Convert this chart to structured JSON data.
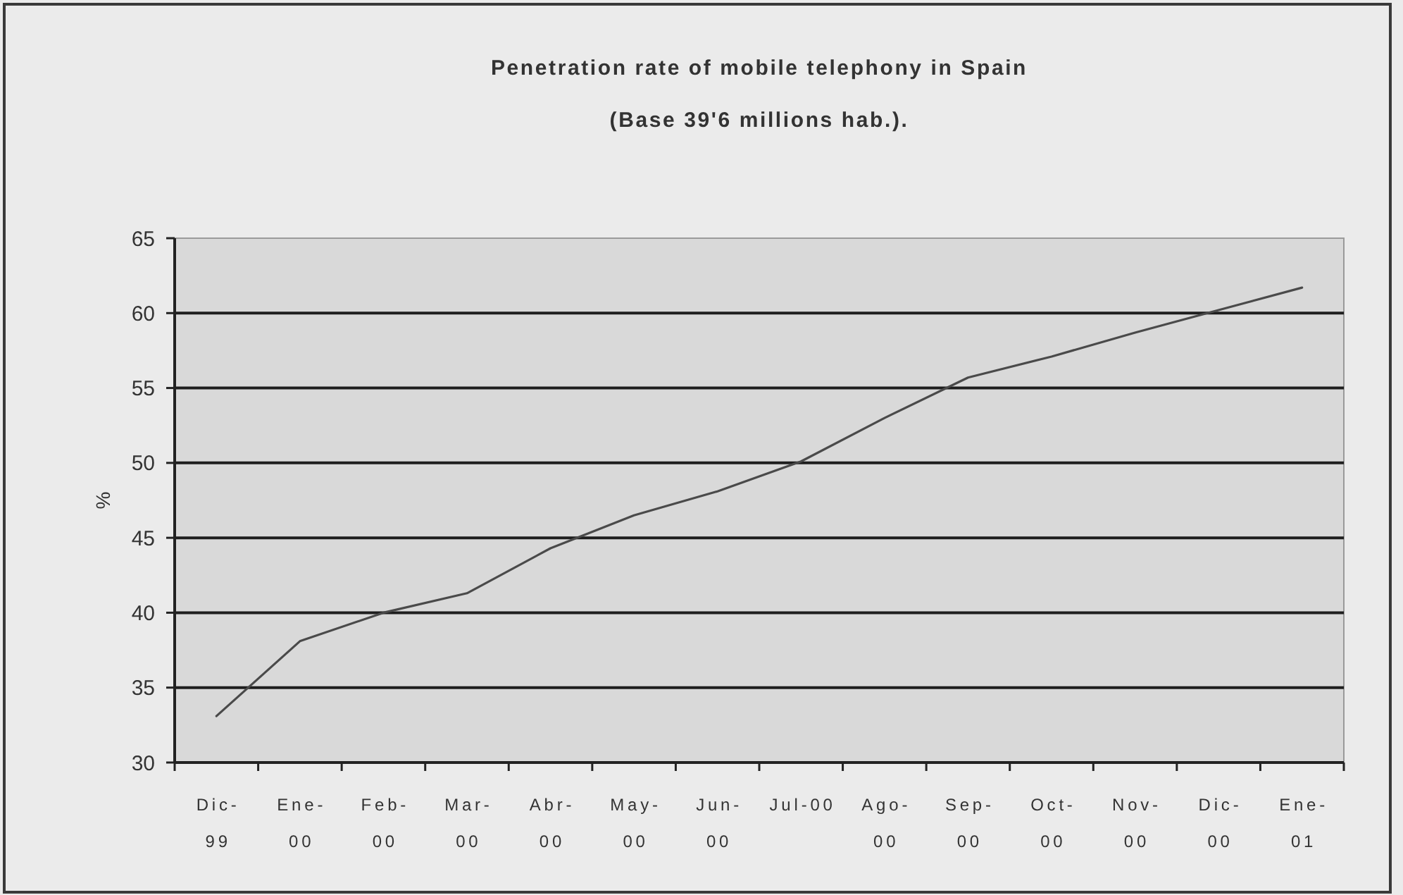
{
  "chart_data": {
    "type": "line",
    "title": "Penetration rate of mobile telephony in Spain",
    "subtitle": "(Base 39'6 millions hab.).",
    "ylabel": "%",
    "categories": [
      "Dic-99",
      "Ene-00",
      "Feb-00",
      "Mar-00",
      "Abr-00",
      "May-00",
      "Jun-00",
      "Jul-00",
      "Ago-00",
      "Sep-00",
      "Oct-00",
      "Nov-00",
      "Dic-00",
      "Ene-01"
    ],
    "values": [
      33.1,
      38.1,
      40.0,
      41.3,
      44.3,
      46.5,
      48.1,
      50.1,
      53.0,
      55.7,
      57.1,
      58.7,
      60.2,
      61.7
    ],
    "color": "#4a4a4a",
    "ylim": [
      30,
      65
    ],
    "yticks": [
      30,
      35,
      40,
      45,
      50,
      55,
      60,
      65
    ],
    "grid": "y"
  }
}
